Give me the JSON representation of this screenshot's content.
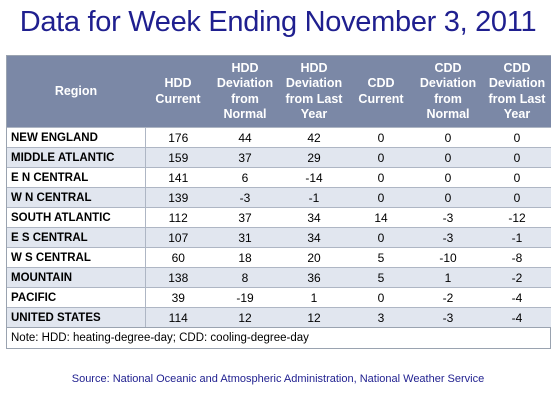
{
  "title": "Data for Week Ending November 3, 2011",
  "columns": [
    [
      "Region"
    ],
    [
      "HDD",
      "Current"
    ],
    [
      "HDD",
      "Deviation",
      "from",
      "Normal"
    ],
    [
      "HDD",
      "Deviation",
      "from Last",
      "Year"
    ],
    [
      "CDD",
      "Current"
    ],
    [
      "CDD",
      "Deviation",
      "from",
      "Normal"
    ],
    [
      "CDD",
      "Deviation",
      "from Last",
      "Year"
    ]
  ],
  "rows": [
    [
      "NEW ENGLAND",
      "176",
      "44",
      "42",
      "0",
      "0",
      "0"
    ],
    [
      "MIDDLE ATLANTIC",
      "159",
      "37",
      "29",
      "0",
      "0",
      "0"
    ],
    [
      "E N CENTRAL",
      "141",
      "6",
      "-14",
      "0",
      "0",
      "0"
    ],
    [
      "W N CENTRAL",
      "139",
      "-3",
      "-1",
      "0",
      "0",
      "0"
    ],
    [
      "SOUTH ATLANTIC",
      "112",
      "37",
      "34",
      "14",
      "-3",
      "-12"
    ],
    [
      "E S CENTRAL",
      "107",
      "31",
      "34",
      "0",
      "-3",
      "-1"
    ],
    [
      "W S CENTRAL",
      "60",
      "18",
      "20",
      "5",
      "-10",
      "-8"
    ],
    [
      "MOUNTAIN",
      "138",
      "8",
      "36",
      "5",
      "1",
      "-2"
    ],
    [
      "PACIFIC",
      "39",
      "-19",
      "1",
      "0",
      "-2",
      "-4"
    ],
    [
      "UNITED STATES",
      "114",
      "12",
      "12",
      "3",
      "-3",
      "-4"
    ]
  ],
  "note": "Note: HDD: heating-degree-day; CDD: cooling-degree-day",
  "source": "Source:  National Oceanic and Atmospheric Administration, National Weather Service"
}
